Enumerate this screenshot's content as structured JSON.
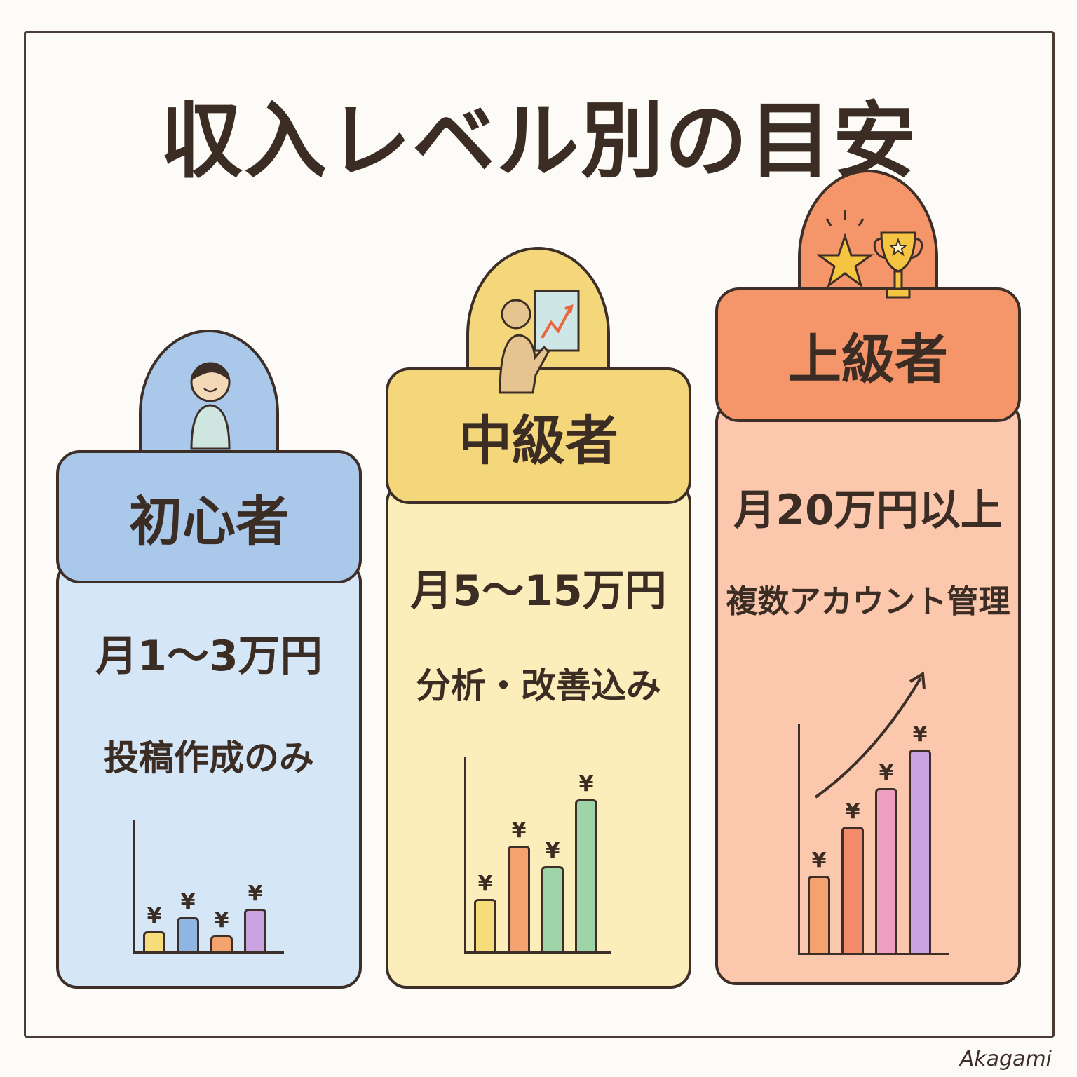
{
  "title": "収入レベル別の目安",
  "signature": "Akagami",
  "colors": {
    "outline": "#3d2f28",
    "beginner_header": "#a9c8ea",
    "beginner_body": "#d5e6f7",
    "intermediate_header": "#f4d77a",
    "intermediate_body": "#fbeebb",
    "advanced_header": "#f5956a",
    "advanced_body": "#fbc8ae"
  },
  "levels": [
    {
      "label": "初心者",
      "amount": "月1～3万円",
      "description": "投稿作成のみ",
      "icon": "person-icon",
      "bars": [
        1.0,
        1.7,
        0.8,
        2.1
      ],
      "bar_colors": [
        "#f7dc7a",
        "#8fb6e3",
        "#f5a36e",
        "#c9a3df"
      ],
      "bar_symbol": "¥"
    },
    {
      "label": "中級者",
      "amount": "月5～15万円",
      "description": "分析・改善込み",
      "icon": "presenter-chart-icon",
      "bars": [
        2.6,
        5.2,
        4.2,
        7.5
      ],
      "bar_colors": [
        "#f7dc7a",
        "#f5a36e",
        "#9fd4a8",
        "#9fd4a8"
      ],
      "bar_symbol": "¥"
    },
    {
      "label": "上級者",
      "amount": "月20万円以上",
      "description": "複数アカウント管理",
      "icon": "star-trophy-icon",
      "bars": [
        3.8,
        6.2,
        8.1,
        10.0
      ],
      "bar_colors": [
        "#f5a36e",
        "#f28c6a",
        "#ee9fc0",
        "#c9a3df"
      ],
      "bar_symbol": "¥",
      "trend_arrow": true
    }
  ]
}
